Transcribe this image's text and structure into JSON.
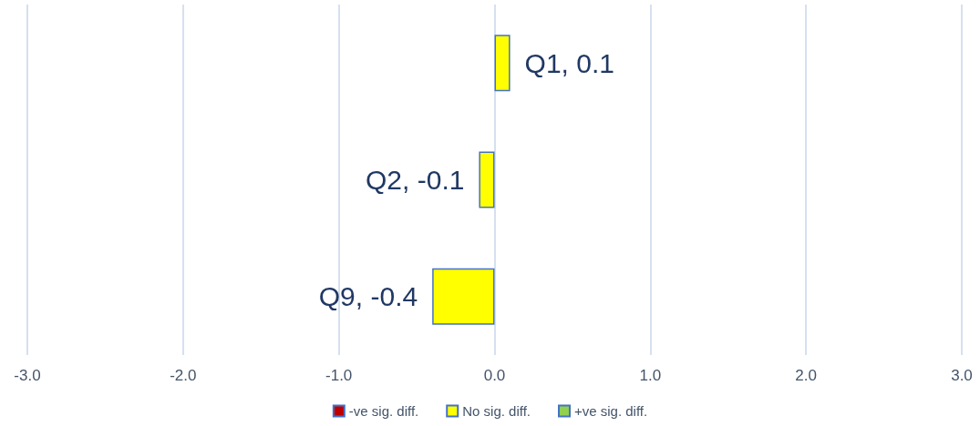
{
  "chart_data": {
    "type": "bar",
    "orientation": "horizontal",
    "categories": [
      null,
      null,
      null
    ],
    "series": [
      {
        "name": "-ve sig. diff.",
        "color": "#c00000",
        "values": [
          null,
          null,
          null
        ]
      },
      {
        "name": "No sig. diff.",
        "color": "#ffff00",
        "values": [
          0.1,
          -0.1,
          -0.4
        ],
        "value_labels": [
          "Q1, 0.1",
          "Q2, -0.1",
          "Q9, -0.4"
        ]
      },
      {
        "name": "+ve sig. diff.",
        "color": "#92d050",
        "values": [
          null,
          null,
          null
        ]
      }
    ],
    "xlim": [
      -3,
      3
    ],
    "xticks": [
      {
        "value": -3,
        "label": "-3.0"
      },
      {
        "value": -2,
        "label": "-2.0"
      },
      {
        "value": -1,
        "label": "-1.0"
      },
      {
        "value": 0,
        "label": "0.0"
      },
      {
        "value": 1,
        "label": "1.0"
      },
      {
        "value": 2,
        "label": "2.0"
      },
      {
        "value": 3,
        "label": "3.0"
      }
    ],
    "grid": "x",
    "legend": "bottom",
    "tick_labels": "x"
  }
}
